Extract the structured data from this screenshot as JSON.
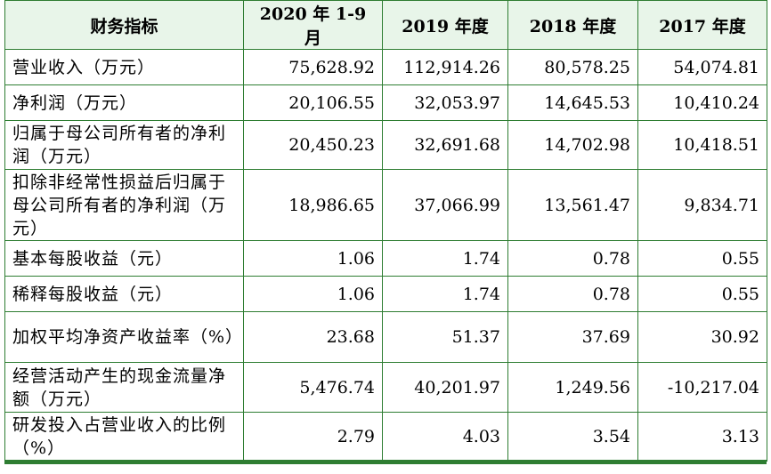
{
  "table": {
    "headers": [
      "财务指标",
      "2020 年 1-9 月",
      "2019 年度",
      "2018 年度",
      "2017 年度"
    ],
    "rows": [
      {
        "label": "营业收入（万元）",
        "values": [
          "75,628.92",
          "112,914.26",
          "80,578.25",
          "54,074.81"
        ]
      },
      {
        "label": "净利润（万元）",
        "values": [
          "20,106.55",
          "32,053.97",
          "14,645.53",
          "10,410.24"
        ]
      },
      {
        "label": "归属于母公司所有者的净利润（万元）",
        "values": [
          "20,450.23",
          "32,691.68",
          "14,702.98",
          "10,418.51"
        ]
      },
      {
        "label": "扣除非经常性损益后归属于母公司所有者的净利润（万元）",
        "values": [
          "18,986.65",
          "37,066.99",
          "13,561.47",
          "9,834.71"
        ]
      },
      {
        "label": "基本每股收益（元）",
        "values": [
          "1.06",
          "1.74",
          "0.78",
          "0.55"
        ]
      },
      {
        "label": "稀释每股收益（元）",
        "values": [
          "1.06",
          "1.74",
          "0.78",
          "0.55"
        ]
      },
      {
        "label": "加权平均净资产收益率（%）",
        "values": [
          "23.68",
          "51.37",
          "37.69",
          "30.92"
        ]
      },
      {
        "label": "经营活动产生的现金流量净额（万元）",
        "values": [
          "5,476.74",
          "40,201.97",
          "1,249.56",
          "-10,217.04"
        ]
      },
      {
        "label": "研发投入占营业收入的比例（%）",
        "values": [
          "2.79",
          "4.03",
          "3.54",
          "3.13"
        ]
      }
    ]
  }
}
